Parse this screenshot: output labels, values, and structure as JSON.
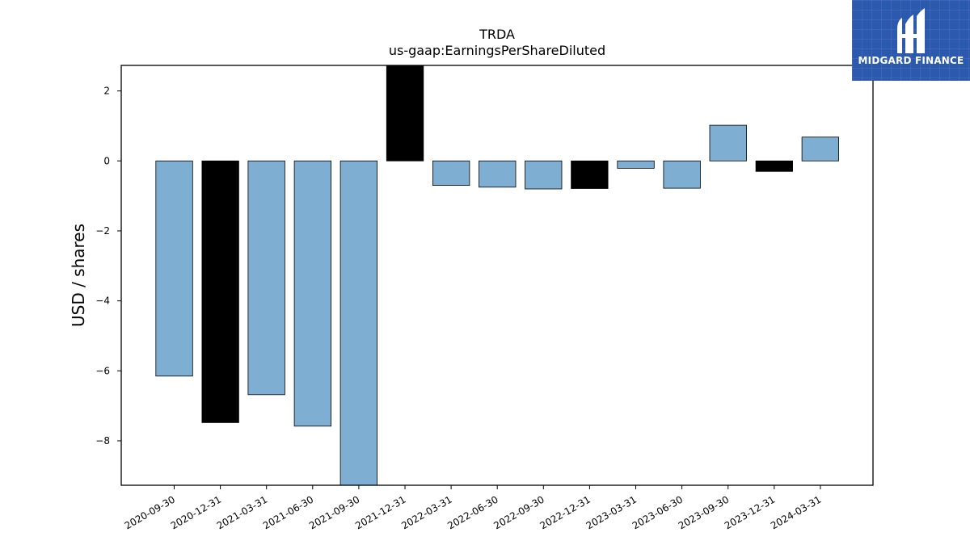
{
  "brand": {
    "name": "MIDGARD FINANCE",
    "bg_color": "#2b59ad",
    "icon": "midgard-logo-icon"
  },
  "chart_data": {
    "type": "bar",
    "title": "TRDA",
    "subtitle": "us-gaap:EarningsPerShareDiluted",
    "xlabel": "",
    "ylabel": "USD / shares",
    "ylim": [
      -9.27,
      2.73
    ],
    "yticks": [
      2,
      0,
      -2,
      -4,
      -6,
      -8
    ],
    "grid": false,
    "categories": [
      "2020-09-30",
      "2020-12-31",
      "2021-03-31",
      "2021-06-30",
      "2021-09-30",
      "2021-12-31",
      "2022-03-31",
      "2022-06-30",
      "2022-09-30",
      "2022-12-31",
      "2023-03-31",
      "2023-06-30",
      "2023-09-30",
      "2023-12-31",
      "2024-03-31"
    ],
    "values": [
      -6.15,
      -7.48,
      -6.68,
      -7.58,
      -9.3,
      2.73,
      -0.7,
      -0.75,
      -0.8,
      -0.79,
      -0.21,
      -0.78,
      1.02,
      -0.3,
      0.68
    ],
    "bar_colors": [
      "#7eafd3",
      "#000000",
      "#7eafd3",
      "#7eafd3",
      "#7eafd3",
      "#000000",
      "#7eafd3",
      "#7eafd3",
      "#7eafd3",
      "#000000",
      "#7eafd3",
      "#7eafd3",
      "#7eafd3",
      "#000000",
      "#7eafd3"
    ]
  }
}
